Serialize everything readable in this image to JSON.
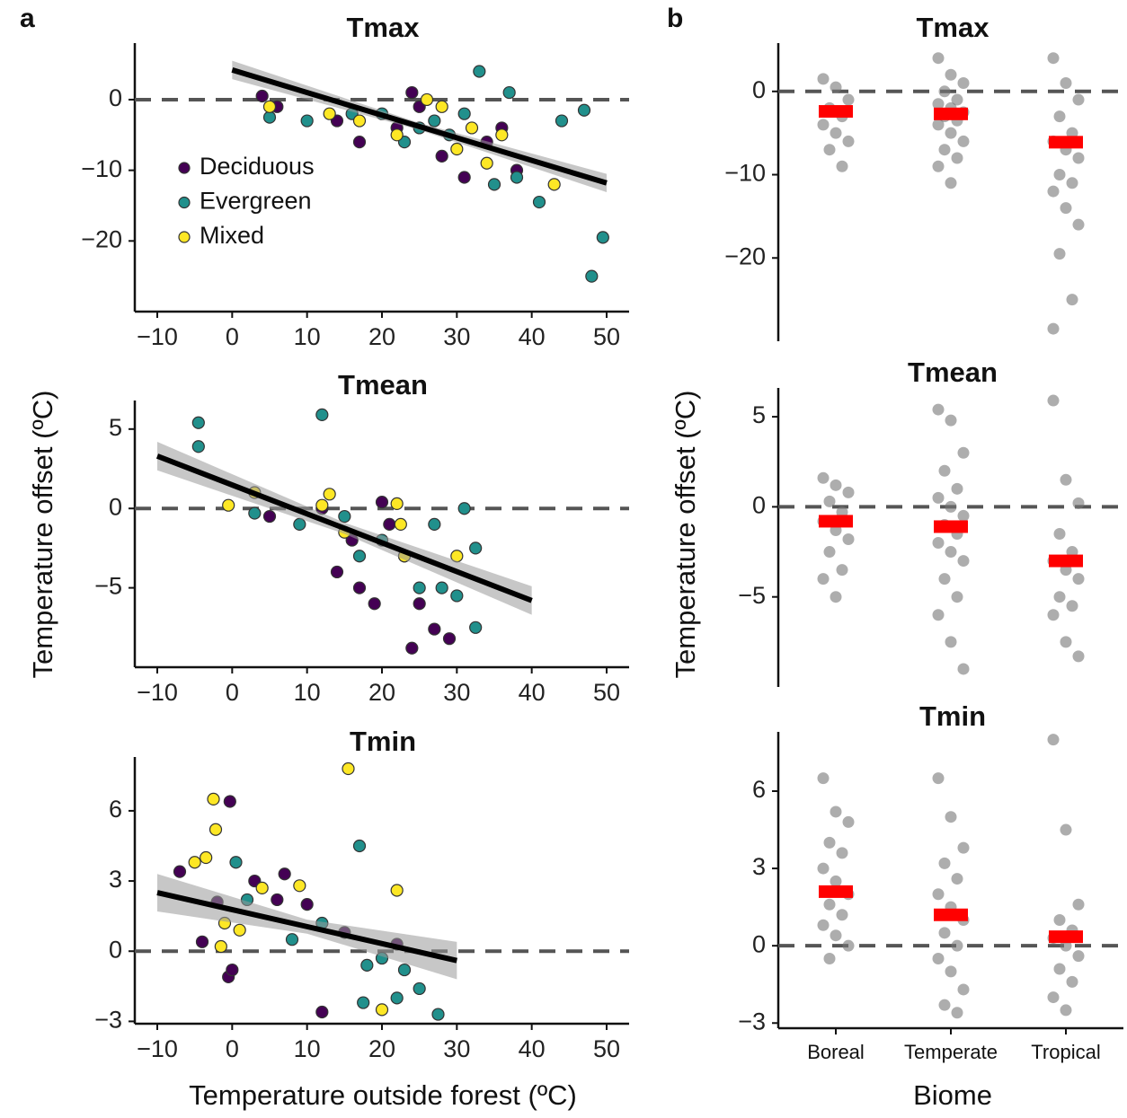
{
  "panels": [
    {
      "label": "a",
      "y_label": "Temperature offset (ºC)",
      "x_label": "Temperature outside forest (ºC)"
    },
    {
      "label": "b",
      "y_label": "Temperature offset (ºC)",
      "x_label": "Biome"
    }
  ],
  "chart_data": [
    {
      "type": "scatter",
      "title": "Tmax",
      "xlim": [
        -13,
        53
      ],
      "xticks": [
        {
          "value": -10,
          "label": "−10"
        },
        0,
        10,
        20,
        30,
        40,
        50
      ],
      "ylim": [
        -30,
        8
      ],
      "yticks": [
        {
          "value": -20,
          "label": "−20"
        },
        {
          "value": -10,
          "label": "−10"
        },
        0
      ],
      "hline": 0,
      "legend": true,
      "series": [
        {
          "name": "Deciduous",
          "color": "#440154",
          "x": [
            4,
            6,
            14,
            17,
            22,
            24,
            25,
            28,
            31,
            34,
            36,
            38
          ],
          "values": [
            0.5,
            -1,
            -3,
            -6,
            -4,
            1,
            -1,
            -8,
            -11,
            -6,
            -4,
            -10
          ]
        },
        {
          "name": "Evergreen",
          "color": "#21908c",
          "x": [
            5,
            10,
            16,
            20,
            23,
            25,
            27,
            29,
            31,
            33,
            35,
            37,
            38,
            41,
            44,
            47,
            48,
            49.5
          ],
          "values": [
            -2.5,
            -3,
            -2,
            -2,
            -6,
            -4,
            -3,
            -5,
            -2,
            4,
            -12,
            1,
            -11,
            -14.5,
            -3,
            -1.5,
            -25,
            -19.5
          ]
        },
        {
          "name": "Mixed",
          "color": "#fde725",
          "x": [
            5,
            13,
            17,
            22,
            26,
            28,
            30,
            32,
            34,
            36,
            43
          ],
          "values": [
            -1,
            -2,
            -3,
            -5,
            0,
            -1,
            -7,
            -4,
            -9,
            -5,
            -12
          ]
        }
      ],
      "fit": {
        "x": [
          0,
          25,
          50
        ],
        "y": [
          4.2,
          -3.8,
          -11.8
        ],
        "lower": [
          2.9,
          -4.3,
          -13.1
        ],
        "upper": [
          5.5,
          -3.3,
          -10.5
        ]
      }
    },
    {
      "type": "scatter",
      "title": "Tmean",
      "xlim": [
        -13,
        53
      ],
      "xticks": [
        {
          "value": -10,
          "label": "−10"
        },
        0,
        10,
        20,
        30,
        40,
        50
      ],
      "ylim": [
        -10,
        6.8
      ],
      "yticks": [
        {
          "value": -5,
          "label": "−5"
        },
        0,
        5
      ],
      "hline": 0,
      "legend": false,
      "series": [
        {
          "name": "Deciduous",
          "color": "#440154",
          "x": [
            5,
            12,
            14,
            16,
            17,
            19,
            20,
            21,
            24,
            25,
            27,
            29
          ],
          "values": [
            -0.5,
            0,
            -4,
            -2,
            -5,
            -6,
            0.4,
            -1,
            -8.8,
            -6,
            -7.6,
            -8.2
          ]
        },
        {
          "name": "Evergreen",
          "color": "#21908c",
          "x": [
            -4.5,
            -4.5,
            3,
            9,
            12,
            15,
            17,
            20,
            23,
            25,
            27,
            28,
            30,
            31,
            32.5,
            32.5
          ],
          "values": [
            5.4,
            3.9,
            -0.3,
            -1,
            5.9,
            -0.5,
            -3,
            -2,
            -3,
            -5,
            -1,
            -5,
            -5.5,
            0,
            -7.5,
            -2.5
          ]
        },
        {
          "name": "Mixed",
          "color": "#fde725",
          "x": [
            -0.5,
            3,
            12,
            13,
            15,
            22,
            22.5,
            23,
            30
          ],
          "values": [
            0.2,
            1,
            0.2,
            0.9,
            -1.5,
            0.3,
            -1,
            -3,
            -3
          ]
        }
      ],
      "fit": {
        "x": [
          -10,
          15,
          40
        ],
        "y": [
          3.3,
          -1.25,
          -5.8
        ],
        "lower": [
          2.4,
          -1.6,
          -6.7
        ],
        "upper": [
          4.2,
          -0.9,
          -4.9
        ]
      }
    },
    {
      "type": "scatter",
      "title": "Tmin",
      "xlim": [
        -13,
        53
      ],
      "xticks": [
        {
          "value": -10,
          "label": "−10"
        },
        0,
        10,
        20,
        30,
        40,
        50
      ],
      "ylim": [
        -3.1,
        8.3
      ],
      "yticks": [
        {
          "value": -3,
          "label": "−3"
        },
        0,
        3,
        6
      ],
      "hline": 0,
      "legend": false,
      "series": [
        {
          "name": "Deciduous",
          "color": "#440154",
          "x": [
            -7,
            -4,
            -2,
            -0.5,
            -0.3,
            0,
            3,
            6,
            7,
            10,
            12,
            15,
            22
          ],
          "values": [
            3.4,
            0.4,
            2.1,
            -1.1,
            6.4,
            -0.8,
            3,
            2.2,
            3.3,
            2,
            -2.6,
            0.8,
            0.3
          ]
        },
        {
          "name": "Evergreen",
          "color": "#21908c",
          "x": [
            0.5,
            2,
            8,
            12,
            17,
            17.5,
            18,
            20,
            22,
            23,
            25,
            27.5
          ],
          "values": [
            3.8,
            2.2,
            0.5,
            1.2,
            4.5,
            -2.2,
            -0.6,
            -0.3,
            -2,
            -0.8,
            -1.6,
            -2.7
          ]
        },
        {
          "name": "Mixed",
          "color": "#fde725",
          "x": [
            -5,
            -3.5,
            -2.5,
            -2.2,
            -1.5,
            -1,
            1,
            4,
            9,
            15.5,
            20,
            22
          ],
          "values": [
            3.8,
            4,
            6.5,
            5.2,
            0.2,
            1.2,
            0.9,
            2.7,
            2.8,
            7.8,
            -2.5,
            2.6
          ]
        }
      ],
      "fit": {
        "x": [
          -10,
          10,
          30
        ],
        "y": [
          2.5,
          1.05,
          -0.4
        ],
        "lower": [
          1.7,
          0.75,
          -1.2
        ],
        "upper": [
          3.3,
          1.35,
          0.4
        ]
      }
    },
    {
      "type": "strip",
      "title": "Tmax",
      "categories": [
        "Boreal",
        "Temperate",
        "Tropical"
      ],
      "show_categories": false,
      "x_axis_line": false,
      "ylim": [
        -30,
        5.8
      ],
      "yticks": [
        {
          "value": -20,
          "label": "−20"
        },
        {
          "value": -10,
          "label": "−10"
        },
        0
      ],
      "hline": 0,
      "color": "#777777",
      "mean_color": "#ff0000",
      "series": [
        {
          "values": [
            1.5,
            0.5,
            -1,
            -2,
            -3,
            -4,
            -5,
            -6,
            -7,
            -9
          ],
          "mean": -2.4
        },
        {
          "values": [
            4,
            2,
            1,
            0,
            -1,
            -1.5,
            -2,
            -2.5,
            -3,
            -3.5,
            -4,
            -5,
            -6,
            -7,
            -8,
            -9,
            -11
          ],
          "mean": -2.7
        },
        {
          "values": [
            4,
            1,
            -1,
            -3,
            -5,
            -6,
            -7,
            -8,
            -10,
            -11,
            -12,
            -14,
            -16,
            -19.5,
            -25,
            -28.5
          ],
          "mean": -6.1
        }
      ]
    },
    {
      "type": "strip",
      "title": "Tmean",
      "categories": [
        "Boreal",
        "Temperate",
        "Tropical"
      ],
      "show_categories": false,
      "x_axis_line": false,
      "ylim": [
        -10,
        6.6
      ],
      "yticks": [
        {
          "value": -5,
          "label": "−5"
        },
        0,
        5
      ],
      "hline": 0,
      "color": "#777777",
      "mean_color": "#ff0000",
      "series": [
        {
          "values": [
            1.6,
            1.2,
            0.8,
            0.3,
            -0.3,
            -0.8,
            -1.3,
            -1.8,
            -2.5,
            -3.5,
            -4,
            -5
          ],
          "mean": -0.8
        },
        {
          "values": [
            5.4,
            4.8,
            3,
            2,
            1,
            0.5,
            0,
            -0.5,
            -1,
            -1.5,
            -2,
            -2.5,
            -3,
            -4,
            -5,
            -6,
            -7.5,
            -9
          ],
          "mean": -1.1
        },
        {
          "values": [
            5.9,
            1.5,
            0.2,
            -1.5,
            -2.5,
            -3,
            -3.5,
            -4,
            -5,
            -5.5,
            -6,
            -7.5,
            -8.3
          ],
          "mean": -3.0
        }
      ]
    },
    {
      "type": "strip",
      "title": "Tmin",
      "categories": [
        "Boreal",
        "Temperate",
        "Tropical"
      ],
      "show_categories": true,
      "x_axis_line": true,
      "ylim": [
        -3.2,
        8.3
      ],
      "yticks": [
        {
          "value": -3,
          "label": "−3"
        },
        0,
        3,
        6
      ],
      "hline": 0,
      "color": "#777777",
      "mean_color": "#ff0000",
      "series": [
        {
          "values": [
            6.5,
            5.2,
            4.8,
            4,
            3.6,
            3,
            2.5,
            2,
            1.6,
            1.2,
            0.8,
            0.4,
            0,
            -0.5
          ],
          "mean": 2.1
        },
        {
          "values": [
            6.5,
            5,
            3.8,
            3.2,
            2.6,
            2,
            1.5,
            1,
            0.5,
            0,
            -0.5,
            -1,
            -1.7,
            -2.3,
            -2.6
          ],
          "mean": 1.2
        },
        {
          "values": [
            8,
            4.5,
            1.6,
            1,
            0.6,
            0.3,
            0,
            -0.4,
            -0.9,
            -1.4,
            -2,
            -2.5
          ],
          "mean": 0.35
        }
      ]
    }
  ]
}
